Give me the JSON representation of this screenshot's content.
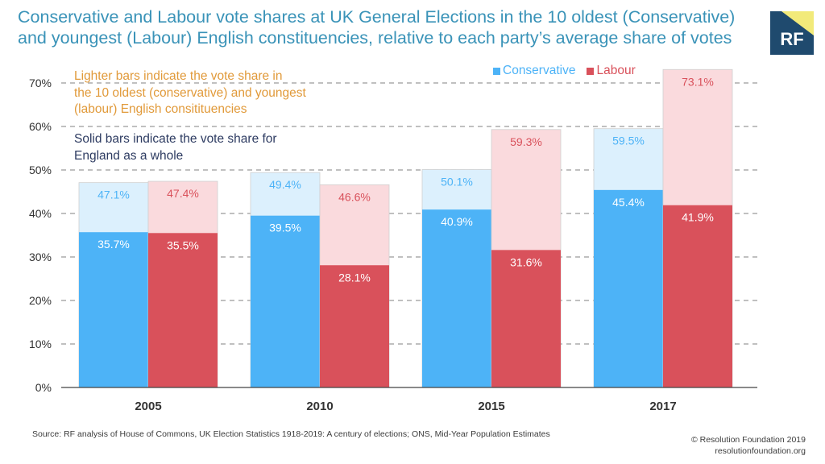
{
  "title_line1": "Conservative and Labour vote shares at UK General Elections in the 10 oldest (Conservative)",
  "title_line2": "and youngest (Labour) English constituencies, relative to each party’s average share of votes",
  "logo_text": "RF",
  "notes": {
    "light_bars_line1": "Lighter bars indicate the vote share in",
    "light_bars_line2": "the 10 oldest (conservative) and youngest",
    "light_bars_line3": "(labour) English consitituencies",
    "solid_bars_line1": "Solid bars indicate the vote share for",
    "solid_bars_line2": "England as a whole"
  },
  "legend": {
    "conservative": "Conservative",
    "labour": "Labour"
  },
  "colors": {
    "title": "#3a93b8",
    "conservative_solid": "#4db3f7",
    "conservative_light": "#dcf0fd",
    "conservative_light_label": "#4db3f7",
    "labour_solid": "#d9515b",
    "labour_light": "#fadadd",
    "labour_light_label": "#d9515b",
    "note_light": "#e19a3a",
    "note_solid": "#2d3b61",
    "grid": "#9b9b9b",
    "logo_bg": "#1f4a6e",
    "logo_accent": "#f2ea7a"
  },
  "chart_data": {
    "type": "bar",
    "categories": [
      "2005",
      "2010",
      "2015",
      "2017"
    ],
    "ylim": [
      0,
      70
    ],
    "yticks": [
      0,
      10,
      20,
      30,
      40,
      50,
      60,
      70
    ],
    "ytick_labels": [
      "0%",
      "10%",
      "20%",
      "30%",
      "40%",
      "50%",
      "60%",
      "70%"
    ],
    "grid": "dashed horizontal",
    "legend_position": "top-right",
    "series": [
      {
        "name": "Conservative",
        "values": [
          35.7,
          39.5,
          40.9,
          45.4
        ],
        "labels": [
          "35.7%",
          "39.5%",
          "40.9%",
          "45.4%"
        ],
        "style": "solid"
      },
      {
        "name": "Conservative",
        "values": [
          47.1,
          49.4,
          50.1,
          59.5
        ],
        "labels": [
          "47.1%",
          "49.4%",
          "50.1%",
          "59.5%"
        ],
        "style": "light"
      },
      {
        "name": "Labour",
        "values": [
          35.5,
          28.1,
          31.6,
          41.9
        ],
        "labels": [
          "35.5%",
          "28.1%",
          "31.6%",
          "41.9%"
        ],
        "style": "solid"
      },
      {
        "name": "Labour",
        "values": [
          47.4,
          46.6,
          59.3,
          73.1
        ],
        "labels": [
          "47.4%",
          "46.6%",
          "59.3%",
          "73.1%"
        ],
        "style": "light"
      }
    ]
  },
  "source": "Source: RF analysis of House of Commons, UK Election Statistics 1918-2019: A century of elections; ONS, Mid-Year Population Estimates",
  "copyright_line1": "© Resolution Foundation 2019",
  "copyright_line2": "resolutionfoundation.org"
}
